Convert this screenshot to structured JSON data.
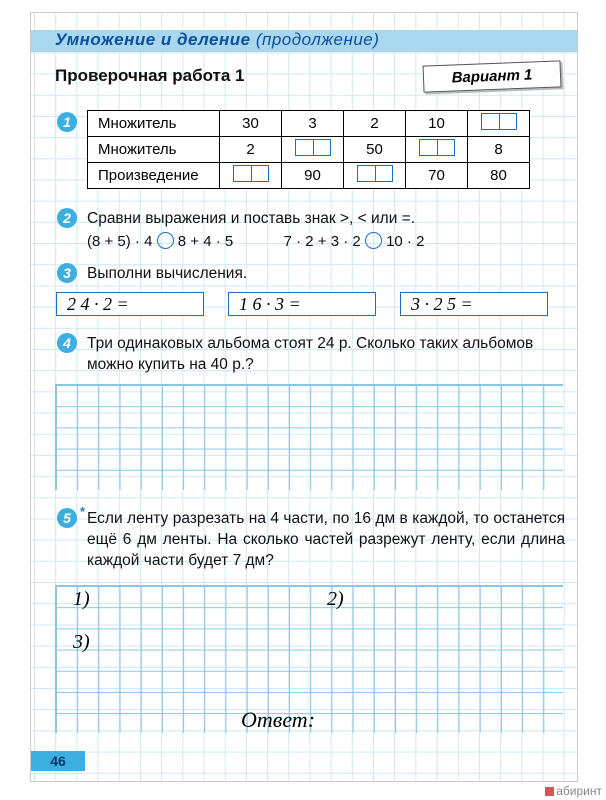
{
  "header": {
    "title_main": "Умножение и деление",
    "title_cont": "(продолжение)"
  },
  "subheader": "Проверочная работа 1",
  "variant": "Вариант 1",
  "q1": {
    "rows": [
      {
        "label": "Множитель",
        "c": [
          "30",
          "3",
          "2",
          "10",
          "BLANK"
        ]
      },
      {
        "label": "Множитель",
        "c": [
          "2",
          "BLANK",
          "50",
          "BLANK",
          "8"
        ]
      },
      {
        "label": "Произведение",
        "c": [
          "BLANK",
          "90",
          "BLANK",
          "70",
          "80"
        ]
      }
    ]
  },
  "q2": {
    "text": "Сравни выражения и поставь знак >, < или =.",
    "expr_left": "(8 + 5) · 4",
    "expr_left2": "8 + 4 · 5",
    "expr_right": "7 · 2 + 3 · 2",
    "expr_right2": "10 · 2"
  },
  "q3": {
    "text": "Выполни вычисления.",
    "items": [
      "2 4 · 2 =",
      "1 6 · 3 =",
      "3 · 2 5 ="
    ]
  },
  "q4": {
    "text": "Три одинаковых альбома стоят 24 р. Сколько таких альбомов можно купить на 40 р.?"
  },
  "q5": {
    "text": "Если ленту разрезать на 4 части, по 16 дм в каждой, то останется ещё 6 дм ленты. На сколько частей разрежут ленту, если длина каждой части будет 7 дм?",
    "steps": [
      "1)",
      "2)",
      "3)"
    ],
    "answer_label": "Ответ:"
  },
  "page_number": "46",
  "watermark": "абиринт"
}
